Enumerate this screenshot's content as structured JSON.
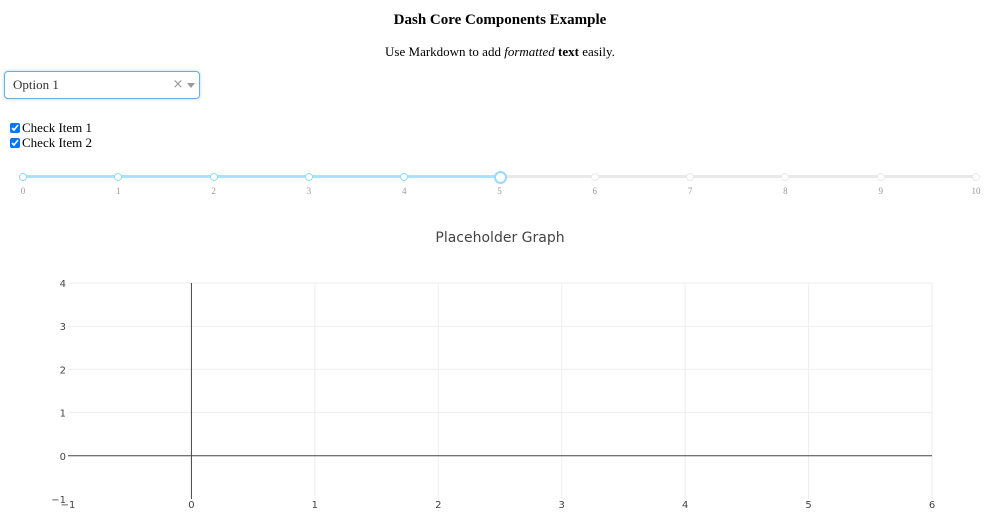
{
  "header": {
    "title": "Dash Core Components Example",
    "intro_prefix": "Use Markdown to add ",
    "intro_italic": "formatted",
    "intro_bold": "text",
    "intro_suffix": " easily."
  },
  "dropdown": {
    "selected": "Option 1",
    "clear_glyph": "×"
  },
  "checklist": [
    {
      "label": "Check Item 1",
      "checked": true
    },
    {
      "label": "Check Item 2",
      "checked": true
    }
  ],
  "slider": {
    "min": 0,
    "max": 10,
    "value": 5,
    "marks": [
      "0",
      "1",
      "2",
      "3",
      "4",
      "5",
      "6",
      "7",
      "8",
      "9",
      "10"
    ],
    "colors": {
      "track": "#abe2fb",
      "handle": "#96dbfa",
      "rail": "#e9e9e9"
    }
  },
  "chart_data": {
    "type": "scatter",
    "title": "Placeholder Graph",
    "xlabel": "",
    "ylabel": "",
    "xlim": [
      -1,
      6
    ],
    "ylim": [
      -1,
      4
    ],
    "xticks": [
      -1,
      0,
      1,
      2,
      3,
      4,
      5,
      6
    ],
    "yticks": [
      -1,
      0,
      1,
      2,
      3,
      4
    ],
    "xtick_labels": [
      "−1",
      "0",
      "1",
      "2",
      "3",
      "4",
      "5",
      "6"
    ],
    "ytick_labels": [
      "−1",
      "0",
      "1",
      "2",
      "3",
      "4"
    ],
    "grid": true,
    "series": []
  }
}
